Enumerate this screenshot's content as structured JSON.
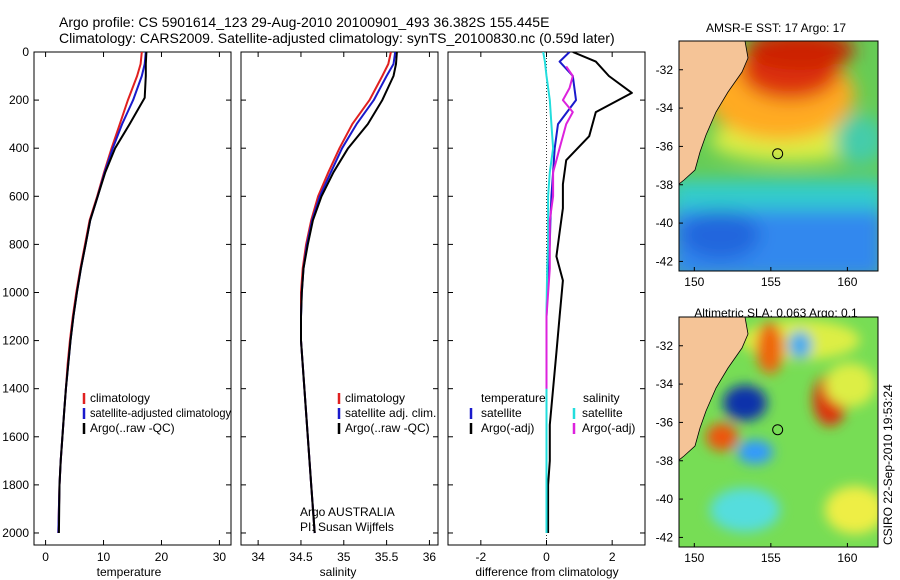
{
  "title_line1": "Argo profile: CS 5901614_123 29-Aug-2010 20100901_493 36.382S 155.445E",
  "title_line2": "Climatology: CARS2009. Satellite-adjusted climatology: synTS_20100830.nc (0.59d later)",
  "side_stamp": "CSIRO 22-Sep-2010 19:53:24",
  "colors": {
    "climatology": "#e02020",
    "satellite": "#1a1acc",
    "argo": "#000000",
    "satellite_salinity": "#22dddd",
    "argo_salinity_diff": "#dd22dd",
    "land": "#f5c497"
  },
  "chart_data": [
    {
      "type": "line",
      "panel": "temperature",
      "xlabel": "temperature",
      "xlim": [
        -2,
        32
      ],
      "ylim": [
        2050,
        0
      ],
      "xticks": [
        "0",
        "10",
        "20",
        "30"
      ],
      "yticks": [
        "0",
        "200",
        "400",
        "600",
        "800",
        "1000",
        "1200",
        "1400",
        "1600",
        "1800",
        "2000"
      ],
      "legend": [
        "climatology",
        "satellite-adjusted climatology",
        "Argo(..raw -QC)"
      ],
      "series": [
        {
          "name": "climatology",
          "color_key": "climatology",
          "x": [
            16.6,
            16.4,
            15.8,
            14.2,
            12.8,
            11.4,
            10.1,
            8.9,
            7.6,
            6.8,
            6.0,
            5.3,
            4.7,
            4.2,
            3.8,
            3.5,
            3.2,
            2.9,
            2.6,
            2.4,
            2.2
          ],
          "y": [
            0,
            50,
            100,
            200,
            300,
            400,
            500,
            600,
            700,
            800,
            900,
            1000,
            1100,
            1200,
            1300,
            1400,
            1500,
            1600,
            1700,
            1800,
            2000
          ]
        },
        {
          "name": "satellite-adjusted climatology",
          "color_key": "satellite",
          "x": [
            17.3,
            17.1,
            16.6,
            15.1,
            13.2,
            11.6,
            10.2,
            9.0,
            7.7,
            6.9,
            6.1,
            5.4,
            4.8,
            4.3,
            3.9,
            3.5,
            3.2,
            2.9,
            2.6,
            2.4,
            2.2
          ],
          "y": [
            0,
            50,
            100,
            200,
            300,
            400,
            500,
            600,
            700,
            800,
            900,
            1000,
            1100,
            1200,
            1300,
            1400,
            1500,
            1600,
            1700,
            1800,
            2000
          ]
        },
        {
          "name": "Argo(..raw -QC)",
          "color_key": "argo",
          "x": [
            17.4,
            17.3,
            17.3,
            17.1,
            14.5,
            12.0,
            10.3,
            9.0,
            7.7,
            6.9,
            6.1,
            5.4,
            4.8,
            4.3,
            3.9,
            3.5,
            3.2,
            2.9,
            2.6,
            2.4,
            2.3
          ],
          "y": [
            0,
            50,
            100,
            190,
            300,
            400,
            500,
            600,
            700,
            800,
            900,
            1000,
            1100,
            1200,
            1300,
            1400,
            1500,
            1600,
            1700,
            1800,
            2000
          ]
        }
      ]
    },
    {
      "type": "line",
      "panel": "salinity",
      "xlabel": "salinity",
      "xlim": [
        33.8,
        36.1
      ],
      "ylim": [
        2050,
        0
      ],
      "xticks": [
        "34",
        "34.5",
        "35",
        "35.5",
        "36"
      ],
      "legend": [
        "climatology",
        "satellite adj. clim.",
        "Argo(..raw -QC)"
      ],
      "annotation": [
        "Argo AUSTRALIA",
        "PI: Susan Wijffels"
      ],
      "series": [
        {
          "name": "climatology",
          "color_key": "climatology",
          "x": [
            35.55,
            35.52,
            35.45,
            35.3,
            35.1,
            34.95,
            34.82,
            34.7,
            34.62,
            34.56,
            34.52,
            34.5,
            34.5,
            34.5,
            34.52,
            34.54,
            34.56,
            34.58,
            34.6,
            34.62,
            34.66
          ],
          "y": [
            0,
            50,
            100,
            200,
            300,
            400,
            500,
            600,
            700,
            800,
            900,
            1000,
            1100,
            1200,
            1300,
            1400,
            1500,
            1600,
            1700,
            1800,
            2000
          ]
        },
        {
          "name": "satellite adj. clim.",
          "color_key": "satellite",
          "x": [
            35.6,
            35.58,
            35.5,
            35.35,
            35.15,
            34.98,
            34.85,
            34.72,
            34.63,
            34.57,
            34.53,
            34.51,
            34.5,
            34.5,
            34.52,
            34.54,
            34.56,
            34.58,
            34.6,
            34.62,
            34.66
          ],
          "y": [
            0,
            50,
            100,
            200,
            300,
            400,
            500,
            600,
            700,
            800,
            900,
            1000,
            1100,
            1200,
            1300,
            1400,
            1500,
            1600,
            1700,
            1800,
            2000
          ]
        },
        {
          "name": "Argo(..raw -QC)",
          "color_key": "argo",
          "x": [
            35.62,
            35.61,
            35.58,
            35.45,
            35.28,
            35.05,
            34.88,
            34.74,
            34.64,
            34.58,
            34.53,
            34.51,
            34.5,
            34.5,
            34.52,
            34.54,
            34.56,
            34.58,
            34.6,
            34.62,
            34.66
          ],
          "y": [
            0,
            50,
            100,
            200,
            300,
            400,
            500,
            600,
            700,
            800,
            900,
            1000,
            1100,
            1200,
            1300,
            1400,
            1500,
            1600,
            1700,
            1800,
            2000
          ]
        }
      ]
    },
    {
      "type": "line",
      "panel": "difference",
      "xlabel": "difference from climatology",
      "xlim": [
        -3,
        3
      ],
      "ylim": [
        2050,
        0
      ],
      "xticks": [
        "-2",
        "0",
        "2"
      ],
      "legend_left_title": "temperature",
      "legend_left": [
        "satellite",
        "Argo(-adj)"
      ],
      "legend_right_title": "salinity",
      "legend_right": [
        "satellite",
        "Argo(-adj)"
      ],
      "series": [
        {
          "name": "temperature satellite",
          "color_key": "satellite",
          "x": [
            0.7,
            0.4,
            0.8,
            0.9,
            0.35,
            0.25,
            0.2,
            0.15,
            0.12,
            0.1,
            0.05,
            0.02,
            0,
            0,
            0,
            0,
            0,
            0,
            0,
            0,
            0
          ],
          "y": [
            0,
            40,
            100,
            200,
            300,
            400,
            500,
            600,
            700,
            800,
            900,
            1000,
            1100,
            1200,
            1300,
            1400,
            1500,
            1600,
            1700,
            1800,
            2000
          ]
        },
        {
          "name": "temperature Argo(-adj)",
          "color_key": "argo",
          "x": [
            0.8,
            1.5,
            1.9,
            2.6,
            1.5,
            1.3,
            0.6,
            0.5,
            0.5,
            0.4,
            0.3,
            0.5,
            0.4,
            0.3,
            0.2,
            0.1,
            0.1,
            0.05,
            0.05,
            0.05,
            0.05
          ],
          "y": [
            0,
            40,
            100,
            170,
            250,
            350,
            450,
            550,
            650,
            750,
            850,
            950,
            1100,
            1250,
            1400,
            1550,
            1700,
            1800,
            1900,
            1950,
            2000
          ]
        },
        {
          "name": "salinity satellite",
          "color_key": "satellite_salinity",
          "x": [
            -0.1,
            -0.05,
            0,
            0.1,
            0.15,
            0.2,
            0.1,
            0.05,
            0.05,
            0.05,
            0.02,
            0.01,
            0,
            0,
            0,
            0,
            0,
            0,
            0,
            0,
            0
          ],
          "y": [
            0,
            40,
            100,
            200,
            300,
            400,
            500,
            600,
            700,
            800,
            900,
            1000,
            1100,
            1200,
            1300,
            1400,
            1500,
            1600,
            1700,
            1800,
            2000
          ]
        },
        {
          "name": "salinity Argo(-adj)",
          "color_key": "argo_salinity_diff",
          "x": [
            0.6,
            0.8,
            0.7,
            0.5,
            0.8,
            0.6,
            0.5,
            0.4,
            0.3,
            0.2,
            0.2,
            0.1,
            0.1,
            0,
            0
          ],
          "y": [
            60,
            100,
            150,
            200,
            250,
            300,
            350,
            400,
            450,
            500,
            600,
            700,
            900,
            1100,
            1400
          ]
        }
      ]
    },
    {
      "type": "heatmap",
      "panel": "sst_map",
      "title": "AMSR-E SST: 17 Argo: 17",
      "xlim": [
        149,
        162
      ],
      "ylim": [
        -42.5,
        -30.5
      ],
      "xticks": [
        "150",
        "155",
        "160"
      ],
      "yticks": [
        "-32",
        "-34",
        "-36",
        "-38",
        "-40",
        "-42"
      ],
      "marker": {
        "lon": 155.445,
        "lat": -36.382
      }
    },
    {
      "type": "heatmap",
      "panel": "sla_map",
      "title": "Altimetric SLA: 0.063 Argo: 0.1",
      "xlim": [
        149,
        162
      ],
      "ylim": [
        -42.5,
        -30.5
      ],
      "xticks": [
        "150",
        "155",
        "160"
      ],
      "yticks": [
        "-32",
        "-34",
        "-36",
        "-38",
        "-40",
        "-42"
      ],
      "marker": {
        "lon": 155.445,
        "lat": -36.382
      }
    }
  ]
}
